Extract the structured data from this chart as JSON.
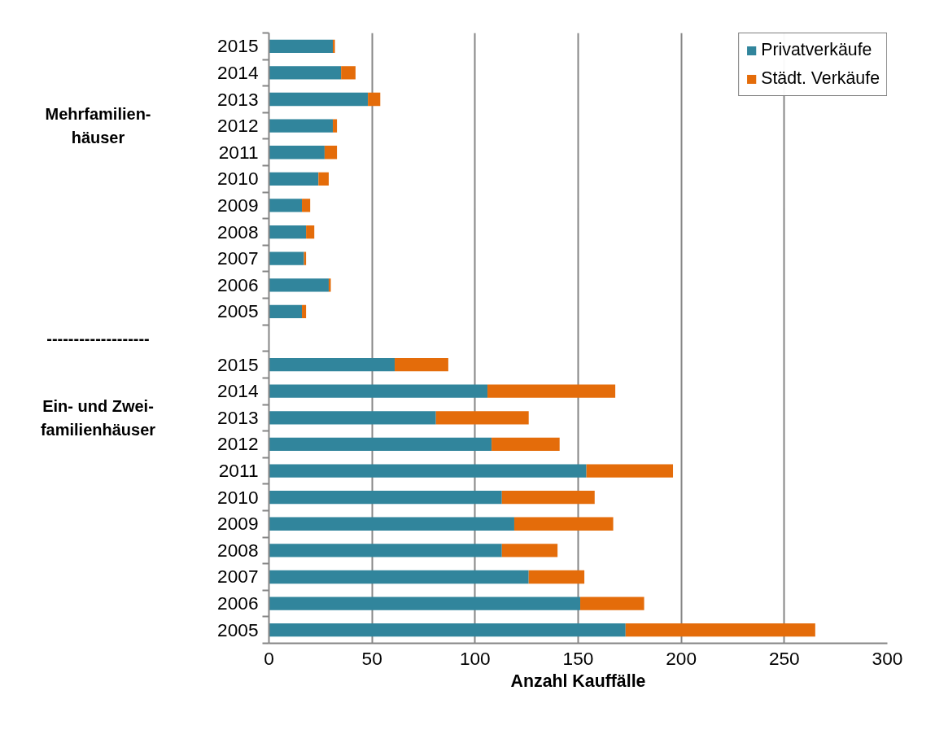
{
  "chart_data": {
    "type": "bar",
    "orientation": "horizontal",
    "stacked": true,
    "categories": [
      "2015",
      "2014",
      "2013",
      "2012",
      "2011",
      "2010",
      "2009",
      "2008",
      "2007",
      "2006",
      "2005",
      null,
      "2015",
      "2014",
      "2013",
      "2012",
      "2011",
      "2010",
      "2009",
      "2008",
      "2007",
      "2006",
      "2005"
    ],
    "series": [
      {
        "name": "Privatverkäufe",
        "color": "#31859c",
        "values": [
          31,
          35,
          48,
          31,
          27,
          24,
          16,
          18,
          17,
          29,
          16,
          null,
          61,
          106,
          81,
          108,
          154,
          113,
          119,
          113,
          126,
          151,
          173
        ]
      },
      {
        "name": "Städt. Verkäufe",
        "color": "#e46c0a",
        "values": [
          1,
          7,
          6,
          2,
          6,
          5,
          4,
          4,
          1,
          1,
          2,
          null,
          26,
          62,
          45,
          33,
          42,
          45,
          48,
          27,
          27,
          31,
          92
        ]
      }
    ],
    "xlabel": "Anzahl Kauffälle",
    "xlim": [
      0,
      300
    ],
    "xticks": [
      0,
      50,
      100,
      150,
      200,
      250,
      300
    ],
    "grid": "x",
    "legend": "top right",
    "annotations": [
      "Mehrfamilien-\nhäuser",
      "-------------------",
      "Ein- und Zwei-\nfamilienhäuser"
    ]
  }
}
